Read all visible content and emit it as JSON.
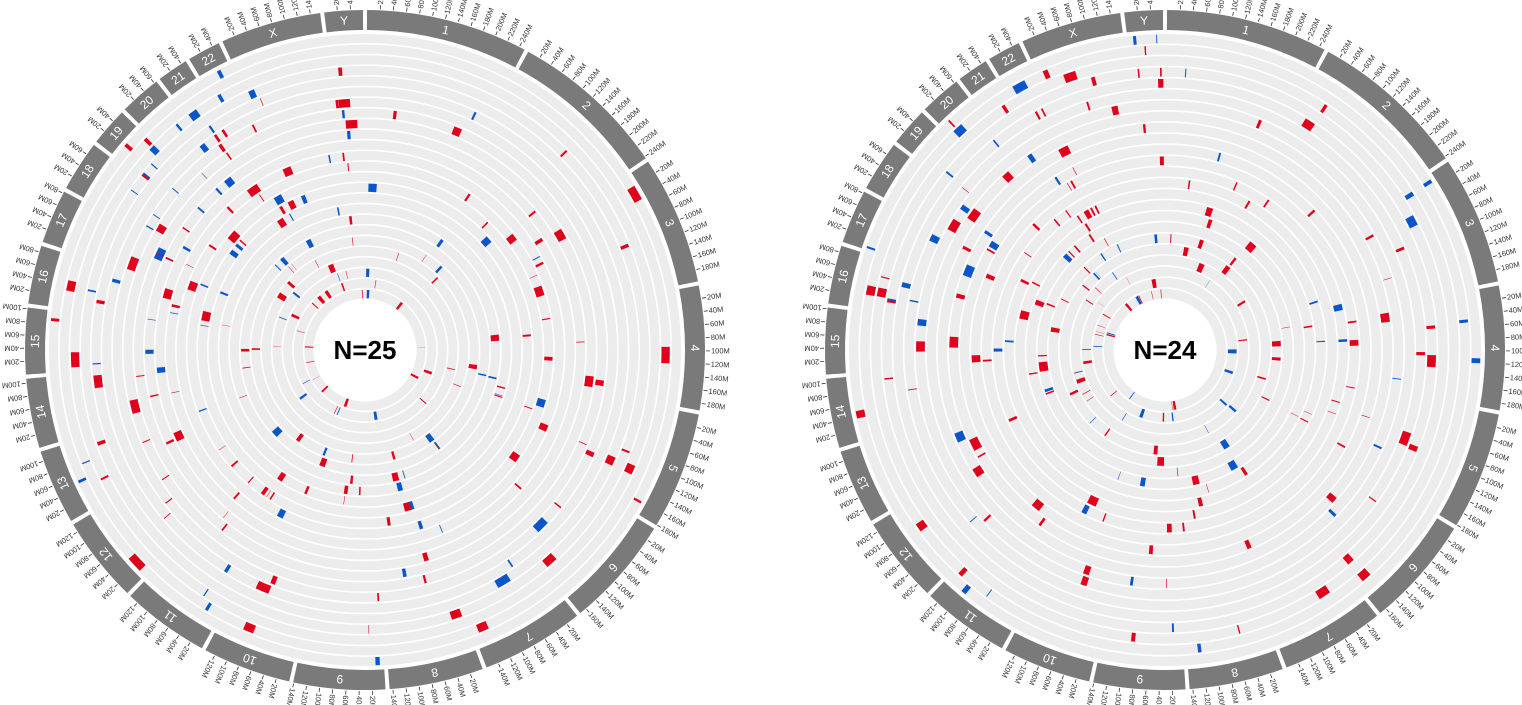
{
  "colors": {
    "gain": "#e0001b",
    "loss": "#0a56c8",
    "ideogram": "#7a7a7a",
    "track_bg": "#ececec",
    "track_sep": "#ffffff",
    "tick": "#333333"
  },
  "chromosomes": [
    {
      "name": "1",
      "ticks": [
        "20M",
        "40M",
        "60M",
        "80M",
        "100M",
        "120M",
        "140M",
        "160M",
        "180M",
        "200M",
        "220M",
        "240M"
      ],
      "length_mb": 249
    },
    {
      "name": "2",
      "ticks": [
        "20M",
        "40M",
        "60M",
        "80M",
        "100M",
        "120M",
        "140M",
        "160M",
        "180M",
        "200M",
        "220M",
        "240M"
      ],
      "length_mb": 243
    },
    {
      "name": "3",
      "ticks": [
        "20M",
        "40M",
        "60M",
        "80M",
        "100M",
        "120M",
        "140M",
        "160M",
        "180M"
      ],
      "length_mb": 198
    },
    {
      "name": "4",
      "ticks": [
        "20M",
        "40M",
        "60M",
        "80M",
        "100M",
        "120M",
        "140M",
        "160M",
        "180M"
      ],
      "length_mb": 191
    },
    {
      "name": "5",
      "ticks": [
        "20M",
        "40M",
        "60M",
        "80M",
        "100M",
        "120M",
        "140M",
        "160M",
        "180M"
      ],
      "length_mb": 181
    },
    {
      "name": "6",
      "ticks": [
        "20M",
        "40M",
        "60M",
        "80M",
        "100M",
        "120M",
        "140M",
        "160M"
      ],
      "length_mb": 171
    },
    {
      "name": "7",
      "ticks": [
        "20M",
        "40M",
        "60M",
        "80M",
        "100M",
        "120M",
        "140M"
      ],
      "length_mb": 159
    },
    {
      "name": "8",
      "ticks": [
        "20M",
        "40M",
        "60M",
        "80M",
        "100M",
        "120M",
        "140M"
      ],
      "length_mb": 145
    },
    {
      "name": "9",
      "ticks": [
        "20M",
        "40M",
        "60M",
        "80M",
        "100M",
        "120M",
        "140M"
      ],
      "length_mb": 141
    },
    {
      "name": "10",
      "ticks": [
        "20M",
        "40M",
        "60M",
        "80M",
        "100M",
        "120M"
      ],
      "length_mb": 136
    },
    {
      "name": "11",
      "ticks": [
        "20M",
        "40M",
        "60M",
        "80M",
        "100M",
        "120M"
      ],
      "length_mb": 135
    },
    {
      "name": "12",
      "ticks": [
        "20M",
        "40M",
        "60M",
        "80M",
        "100M",
        "120M"
      ],
      "length_mb": 133
    },
    {
      "name": "13",
      "ticks": [
        "20M",
        "40M",
        "60M",
        "80M",
        "100M"
      ],
      "length_mb": 115
    },
    {
      "name": "14",
      "ticks": [
        "20M",
        "40M",
        "60M",
        "80M",
        "100M"
      ],
      "length_mb": 107
    },
    {
      "name": "15",
      "ticks": [
        "20M",
        "40M",
        "60M",
        "80M",
        "100M"
      ],
      "length_mb": 102
    },
    {
      "name": "16",
      "ticks": [
        "20M",
        "40M",
        "60M",
        "80M"
      ],
      "length_mb": 90
    },
    {
      "name": "17",
      "ticks": [
        "20M",
        "40M",
        "60M",
        "80M"
      ],
      "length_mb": 83
    },
    {
      "name": "18",
      "ticks": [
        "20M",
        "40M",
        "60M"
      ],
      "length_mb": 78
    },
    {
      "name": "19",
      "ticks": [
        "20M",
        "40M"
      ],
      "length_mb": 59
    },
    {
      "name": "20",
      "ticks": [
        "20M",
        "40M",
        "60M"
      ],
      "length_mb": 64
    },
    {
      "name": "21",
      "ticks": [
        "20M",
        "40M"
      ],
      "length_mb": 48
    },
    {
      "name": "22",
      "ticks": [
        "20M",
        "40M"
      ],
      "length_mb": 51
    },
    {
      "name": "X",
      "ticks": [
        "20M",
        "40M",
        "60M",
        "80M",
        "100M",
        "120M",
        "140M"
      ],
      "length_mb": 155
    },
    {
      "name": "Y",
      "ticks": [
        "20M",
        "40M"
      ],
      "length_mb": 59
    }
  ],
  "panels": [
    {
      "name": "circos-left",
      "label": "N=25",
      "tracks": 25,
      "seed": 7
    },
    {
      "name": "circos-right",
      "label": "N=24",
      "tracks": 24,
      "seed": 31
    }
  ]
}
